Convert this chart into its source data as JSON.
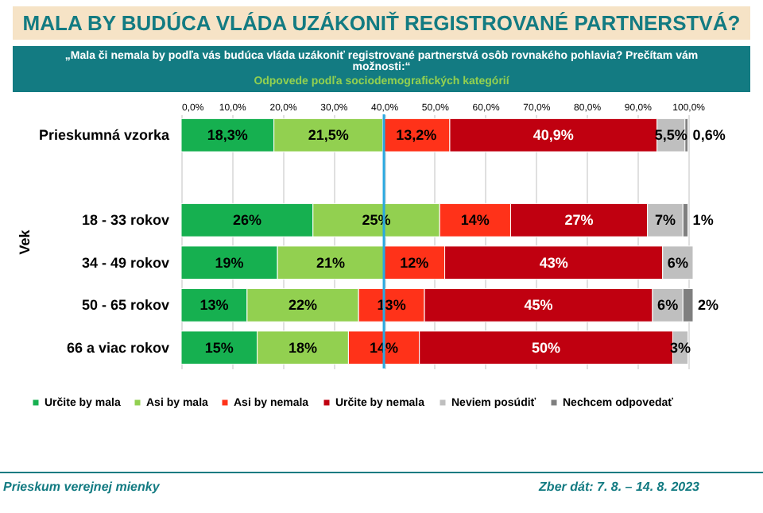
{
  "chart_data": {
    "type": "bar",
    "orientation": "horizontal",
    "stacked": true,
    "title": "MALA BY BUDÚCA VLÁDA UZÁKONIŤ REGISTROVANÉ PARTNERSTVÁ?",
    "subtitle": "„Mala či nemala by podľa vás budúca vláda uzákoniť registrované partnerstvá osôb rovnakého pohlavia? Prečítam vám možnosti:“",
    "ylabel": "Vek",
    "categories": [
      "Prieskumná vzorka",
      null,
      "18 - 33 rokov",
      "34 - 49 rokov",
      "50 - 65 rokov",
      "66 a viac rokov"
    ],
    "series": [
      {
        "name": "Určite by mala",
        "color": "#16b050",
        "values": [
          18.3,
          null,
          26,
          19,
          13,
          15
        ],
        "value_labels": [
          "18,3%",
          null,
          "26%",
          "19%",
          "13%",
          "15%"
        ]
      },
      {
        "name": "Asi by mala",
        "color": "#92d050",
        "values": [
          21.5,
          null,
          25,
          21,
          22,
          18
        ],
        "value_labels": [
          "21,5%",
          null,
          "25%",
          "21%",
          "22%",
          "18%"
        ]
      },
      {
        "name": "Asi by nemala",
        "color": "#ff3219",
        "values": [
          13.2,
          null,
          14,
          12,
          13,
          14
        ],
        "value_labels": [
          "13,2%",
          null,
          "14%",
          "12%",
          "13%",
          "14%"
        ]
      },
      {
        "name": "Určite by nemala",
        "color": "#c00010",
        "values": [
          40.9,
          null,
          27,
          43,
          45,
          50
        ],
        "value_labels": [
          "40,9%",
          null,
          "27%",
          "43%",
          "45%",
          "50%"
        ]
      },
      {
        "name": "Neviem posúdiť",
        "color": "#bfbfbf",
        "values": [
          5.5,
          null,
          7,
          6,
          6,
          3
        ],
        "value_labels": [
          "5,5%",
          null,
          "7%",
          "6%",
          "6%",
          "3%"
        ]
      },
      {
        "name": "Nechcem odpovedať",
        "color": "#7f7f7f",
        "values": [
          0.6,
          null,
          1,
          null,
          2,
          null
        ],
        "value_labels": [
          "0,6%",
          null,
          "1%",
          null,
          "2%",
          null
        ]
      }
    ],
    "xlim": [
      0,
      101
    ],
    "xticks": [
      {
        "value": 0,
        "label": "0,0%"
      },
      {
        "value": 10,
        "label": "10,0%"
      },
      {
        "value": 20,
        "label": "20,0%"
      },
      {
        "value": 30,
        "label": "30,0%"
      },
      {
        "value": 40,
        "label": "40,0%"
      },
      {
        "value": 50,
        "label": "50,0%"
      },
      {
        "value": 60,
        "label": "60,0%"
      },
      {
        "value": 70,
        "label": "70,0%"
      },
      {
        "value": 80,
        "label": "80,0%"
      },
      {
        "value": 90,
        "label": "90,0%"
      },
      {
        "value": 100,
        "label": "100,0%"
      }
    ],
    "grid": "x",
    "legend": "bottom",
    "ref_lines": [
      {
        "axis": "x",
        "value": 40,
        "color": "#29a8e0"
      }
    ],
    "annotations": [
      "Odpovede podľa sociodemografických kategórií",
      "Prieskum verejnej mienky",
      "Zber dát: 7. 8. – 14. 8. 2023"
    ]
  }
}
